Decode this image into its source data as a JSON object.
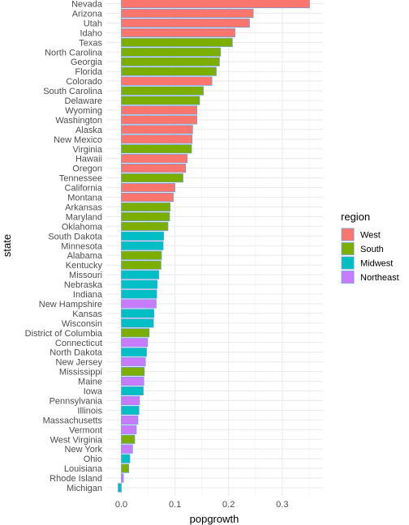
{
  "chart_data": {
    "type": "bar",
    "orientation": "horizontal",
    "xlabel": "popgrowth",
    "ylabel": "state",
    "xlim": [
      -0.006,
      0.365
    ],
    "x_ticks": [
      0.0,
      0.1,
      0.2,
      0.3
    ],
    "x_tick_labels": [
      "0.0",
      "0.1",
      "0.2",
      "0.3"
    ],
    "grid": true,
    "legend": {
      "title": "region",
      "position": "right",
      "entries": [
        {
          "name": "West",
          "color": "#F8766D"
        },
        {
          "name": "South",
          "color": "#7CAE00"
        },
        {
          "name": "Midwest",
          "color": "#00BFC4"
        },
        {
          "name": "Northeast",
          "color": "#C77CFF"
        }
      ]
    },
    "bar_outline_color": "#6E9FD8",
    "data": [
      {
        "state": "Nevada",
        "value": 0.351,
        "region": "West"
      },
      {
        "state": "Arizona",
        "value": 0.246,
        "region": "West"
      },
      {
        "state": "Utah",
        "value": 0.239,
        "region": "West"
      },
      {
        "state": "Idaho",
        "value": 0.212,
        "region": "West"
      },
      {
        "state": "Texas",
        "value": 0.207,
        "region": "South"
      },
      {
        "state": "North Carolina",
        "value": 0.185,
        "region": "South"
      },
      {
        "state": "Georgia",
        "value": 0.183,
        "region": "South"
      },
      {
        "state": "Florida",
        "value": 0.177,
        "region": "South"
      },
      {
        "state": "Colorado",
        "value": 0.169,
        "region": "West"
      },
      {
        "state": "South Carolina",
        "value": 0.153,
        "region": "South"
      },
      {
        "state": "Delaware",
        "value": 0.146,
        "region": "South"
      },
      {
        "state": "Wyoming",
        "value": 0.141,
        "region": "West"
      },
      {
        "state": "Washington",
        "value": 0.141,
        "region": "West"
      },
      {
        "state": "Alaska",
        "value": 0.133,
        "region": "West"
      },
      {
        "state": "New Mexico",
        "value": 0.132,
        "region": "West"
      },
      {
        "state": "Virginia",
        "value": 0.131,
        "region": "South"
      },
      {
        "state": "Hawaii",
        "value": 0.123,
        "region": "West"
      },
      {
        "state": "Oregon",
        "value": 0.12,
        "region": "West"
      },
      {
        "state": "Tennessee",
        "value": 0.115,
        "region": "South"
      },
      {
        "state": "California",
        "value": 0.1,
        "region": "West"
      },
      {
        "state": "Montana",
        "value": 0.097,
        "region": "West"
      },
      {
        "state": "Arkansas",
        "value": 0.091,
        "region": "South"
      },
      {
        "state": "Maryland",
        "value": 0.09,
        "region": "South"
      },
      {
        "state": "Oklahoma",
        "value": 0.087,
        "region": "South"
      },
      {
        "state": "South Dakota",
        "value": 0.079,
        "region": "Midwest"
      },
      {
        "state": "Minnesota",
        "value": 0.078,
        "region": "Midwest"
      },
      {
        "state": "Alabama",
        "value": 0.075,
        "region": "South"
      },
      {
        "state": "Kentucky",
        "value": 0.074,
        "region": "South"
      },
      {
        "state": "Missouri",
        "value": 0.07,
        "region": "Midwest"
      },
      {
        "state": "Nebraska",
        "value": 0.067,
        "region": "Midwest"
      },
      {
        "state": "Indiana",
        "value": 0.066,
        "region": "Midwest"
      },
      {
        "state": "New Hampshire",
        "value": 0.065,
        "region": "Northeast"
      },
      {
        "state": "Kansas",
        "value": 0.061,
        "region": "Midwest"
      },
      {
        "state": "Wisconsin",
        "value": 0.06,
        "region": "Midwest"
      },
      {
        "state": "District of Columbia",
        "value": 0.052,
        "region": "South"
      },
      {
        "state": "Connecticut",
        "value": 0.049,
        "region": "Northeast"
      },
      {
        "state": "North Dakota",
        "value": 0.047,
        "region": "Midwest"
      },
      {
        "state": "New Jersey",
        "value": 0.045,
        "region": "Northeast"
      },
      {
        "state": "Mississippi",
        "value": 0.043,
        "region": "South"
      },
      {
        "state": "Maine",
        "value": 0.042,
        "region": "Northeast"
      },
      {
        "state": "Iowa",
        "value": 0.041,
        "region": "Midwest"
      },
      {
        "state": "Pennsylvania",
        "value": 0.034,
        "region": "Northeast"
      },
      {
        "state": "Illinois",
        "value": 0.033,
        "region": "Midwest"
      },
      {
        "state": "Massachusetts",
        "value": 0.031,
        "region": "Northeast"
      },
      {
        "state": "Vermont",
        "value": 0.028,
        "region": "Northeast"
      },
      {
        "state": "West Virginia",
        "value": 0.025,
        "region": "South"
      },
      {
        "state": "New York",
        "value": 0.021,
        "region": "Northeast"
      },
      {
        "state": "Ohio",
        "value": 0.016,
        "region": "Midwest"
      },
      {
        "state": "Louisiana",
        "value": 0.014,
        "region": "South"
      },
      {
        "state": "Rhode Island",
        "value": 0.004,
        "region": "Northeast"
      },
      {
        "state": "Michigan",
        "value": -0.006,
        "region": "Midwest"
      }
    ]
  }
}
